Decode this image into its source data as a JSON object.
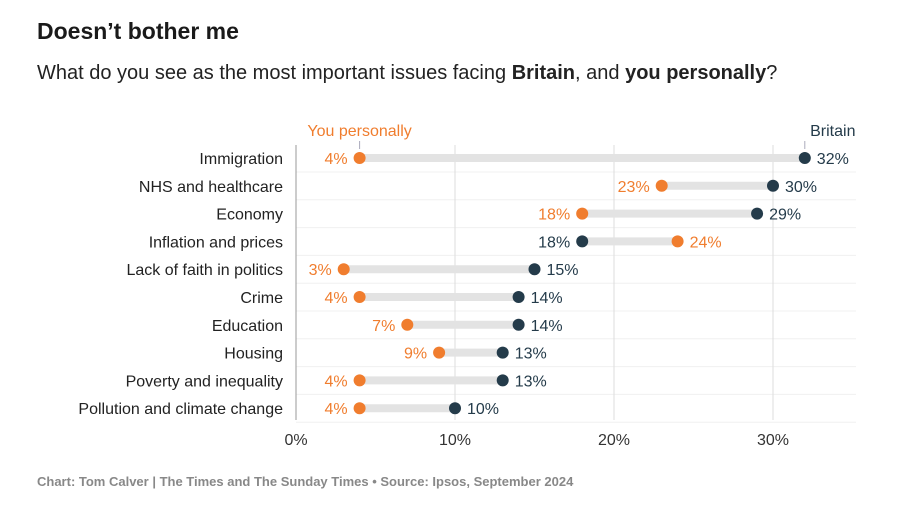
{
  "title": "Doesn’t bother me",
  "subtitle": {
    "pre": "What do you see as the most important issues facing ",
    "b1": "Britain",
    "mid": ", and ",
    "b2": "you personally",
    "post": "?"
  },
  "footer": "Chart: Tom Calver | The Times and The Sunday Times • Source: Ipsos, September 2024",
  "colors": {
    "personal": "#f07d2e",
    "britain": "#243b4a",
    "bar": "#e3e3e3"
  },
  "chart_data": {
    "type": "dumbbell",
    "xlim": [
      0,
      35
    ],
    "xticks": [
      0,
      10,
      20,
      30
    ],
    "xtick_labels": [
      "0%",
      "10%",
      "20%",
      "30%"
    ],
    "series_labels": {
      "personal": "You personally",
      "britain": "Britain"
    },
    "categories": [
      "Immigration",
      "NHS and healthcare",
      "Economy",
      "Inflation and prices",
      "Lack of faith in politics",
      "Crime",
      "Education",
      "Housing",
      "Poverty and inequality",
      "Pollution and climate change"
    ],
    "personal": [
      4,
      23,
      18,
      24,
      3,
      4,
      7,
      9,
      4,
      4
    ],
    "britain": [
      32,
      30,
      29,
      18,
      15,
      14,
      14,
      13,
      13,
      10
    ]
  }
}
